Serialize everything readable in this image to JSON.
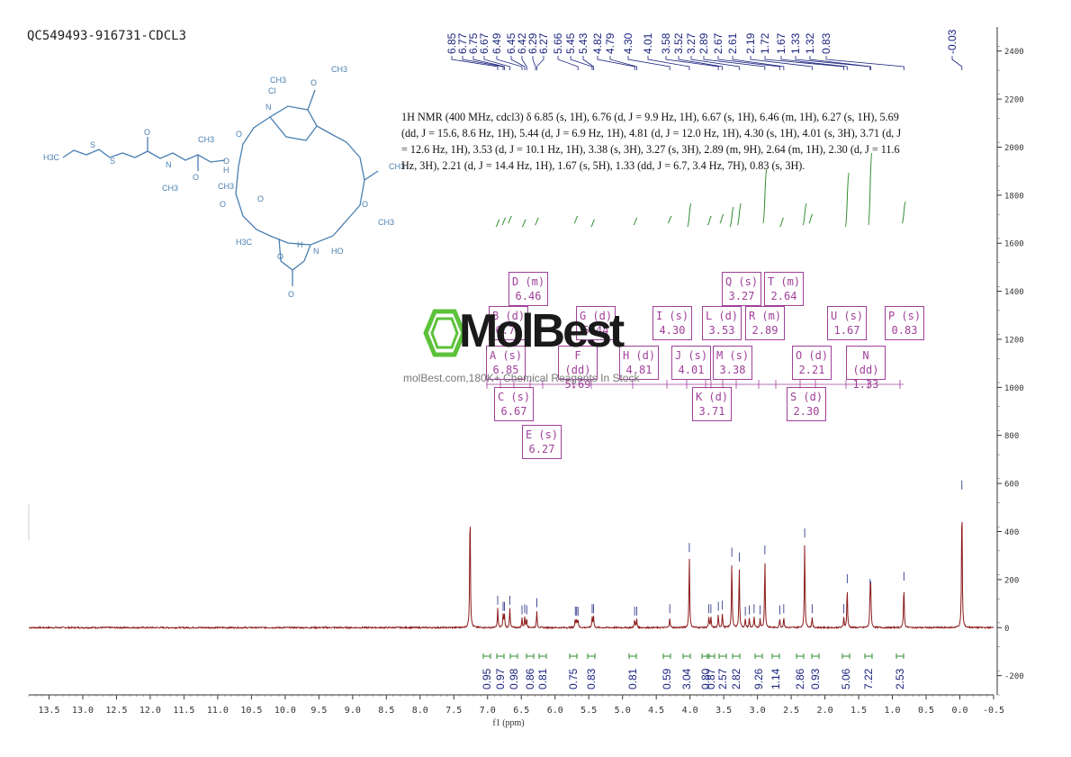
{
  "sample_title": "QC549493-916731-CDCL3",
  "nmr_description": "1H NMR (400 MHz, cdcl3) δ 6.85 (s, 1H), 6.76 (d, J = 9.9 Hz, 1H), 6.67 (s, 1H), 6.46 (m, 1H), 6.27 (s, 1H), 5.69 (dd, J = 15.6, 8.6 Hz, 1H), 5.44 (d, J = 6.9 Hz, 1H), 4.81 (d, J = 12.0 Hz, 1H), 4.30 (s, 1H), 4.01 (s, 3H), 3.71 (d, J = 12.6 Hz, 1H), 3.53 (d, J = 10.1 Hz, 1H), 3.38 (s, 3H), 3.27 (s, 3H), 2.89 (m, 9H), 2.64 (m, 1H), 2.30 (d, J = 11.6 Hz, 3H), 2.21 (d, J = 14.4 Hz, 1H), 1.67 (s, 5H), 1.33 (dd, J = 6.7, 3.4 Hz, 7H), 0.83 (s, 3H).",
  "watermark": {
    "brand": "MolBest",
    "subtitle": "molBest.com,180K+ Chemical Reagents In Stock"
  },
  "colors": {
    "spectrum": "#8b1a1a",
    "peak_labels": "#1a237e",
    "integral": "#2e8b2e",
    "multiplet_box": "#a0409a",
    "structure": "#4a7fb0"
  },
  "structure_atom_labels": [
    "H3C",
    "S",
    "S",
    "O",
    "N",
    "CH3",
    "CH3",
    "O",
    "O",
    "Cl",
    "O",
    "CH3",
    "N",
    "CH3",
    "O",
    "O",
    "CH3",
    "H",
    "O",
    "H3C",
    "O",
    "N",
    "H",
    "HO",
    "O",
    "O",
    "CH3",
    "CH3"
  ],
  "chart_data": {
    "type": "line",
    "title": "",
    "xlabel": "f1 (ppm)",
    "ylabel": "",
    "xlim": [
      13.8,
      -0.5
    ],
    "ylim": [
      -280,
      2500
    ],
    "x_ticks": [
      "13.5",
      "13.0",
      "12.5",
      "12.0",
      "11.5",
      "11.0",
      "10.5",
      "10.0",
      "9.5",
      "9.0",
      "8.5",
      "8.0",
      "7.5",
      "7.0",
      "6.5",
      "6.0",
      "5.5",
      "5.0",
      "4.5",
      "4.0",
      "3.5",
      "3.0",
      "2.5",
      "2.0",
      "1.5",
      "1.0",
      "0.5",
      "0.0",
      "-0.5"
    ],
    "x_tick_values": [
      13.5,
      13.0,
      12.5,
      12.0,
      11.5,
      11.0,
      10.5,
      10.0,
      9.5,
      9.0,
      8.5,
      8.0,
      7.5,
      7.0,
      6.5,
      6.0,
      5.5,
      5.0,
      4.5,
      4.0,
      3.5,
      3.0,
      2.5,
      2.0,
      1.5,
      1.0,
      0.5,
      0.0,
      -0.5
    ],
    "y_ticks": [
      "-200",
      "0",
      "200",
      "400",
      "600",
      "800",
      "1000",
      "1200",
      "1400",
      "1600",
      "1800",
      "2000",
      "2200",
      "2400"
    ],
    "y_tick_values": [
      -200,
      0,
      200,
      400,
      600,
      800,
      1000,
      1200,
      1400,
      1600,
      1800,
      2000,
      2200,
      2400
    ],
    "peak_labels": [
      "6.85",
      "6.77",
      "6.75",
      "6.67",
      "6.49",
      "6.45",
      "6.42",
      "6.29",
      "6.27",
      "5.66",
      "5.45",
      "5.43",
      "4.82",
      "4.79",
      "4.30",
      "4.01",
      "3.58",
      "3.52",
      "3.27",
      "2.89",
      "2.67",
      "2.61",
      "2.19",
      "1.72",
      "1.67",
      "1.33",
      "1.32",
      "0.83",
      "-0.03"
    ],
    "peak_label_values": [
      6.85,
      6.77,
      6.75,
      6.67,
      6.49,
      6.45,
      6.42,
      6.29,
      6.27,
      5.66,
      5.45,
      5.43,
      4.82,
      4.79,
      4.3,
      4.01,
      3.58,
      3.52,
      3.27,
      2.89,
      2.67,
      2.61,
      2.19,
      1.72,
      1.67,
      1.33,
      1.32,
      0.83,
      -0.03
    ],
    "peaks": [
      {
        "ppm": 7.26,
        "height": 530
      },
      {
        "ppm": 6.85,
        "height": 80
      },
      {
        "ppm": 6.77,
        "height": 55
      },
      {
        "ppm": 6.75,
        "height": 55
      },
      {
        "ppm": 6.67,
        "height": 80
      },
      {
        "ppm": 6.49,
        "height": 40
      },
      {
        "ppm": 6.45,
        "height": 45
      },
      {
        "ppm": 6.42,
        "height": 40
      },
      {
        "ppm": 6.27,
        "height": 70
      },
      {
        "ppm": 5.7,
        "height": 35
      },
      {
        "ppm": 5.68,
        "height": 35
      },
      {
        "ppm": 5.66,
        "height": 35
      },
      {
        "ppm": 5.45,
        "height": 45
      },
      {
        "ppm": 5.43,
        "height": 45
      },
      {
        "ppm": 4.82,
        "height": 35
      },
      {
        "ppm": 4.79,
        "height": 35
      },
      {
        "ppm": 4.3,
        "height": 45
      },
      {
        "ppm": 4.01,
        "height": 300
      },
      {
        "ppm": 3.72,
        "height": 45
      },
      {
        "ppm": 3.69,
        "height": 45
      },
      {
        "ppm": 3.58,
        "height": 55
      },
      {
        "ppm": 3.52,
        "height": 60
      },
      {
        "ppm": 3.38,
        "height": 280
      },
      {
        "ppm": 3.27,
        "height": 260
      },
      {
        "ppm": 3.18,
        "height": 35
      },
      {
        "ppm": 3.12,
        "height": 40
      },
      {
        "ppm": 3.05,
        "height": 45
      },
      {
        "ppm": 2.96,
        "height": 40
      },
      {
        "ppm": 2.89,
        "height": 290
      },
      {
        "ppm": 2.67,
        "height": 40
      },
      {
        "ppm": 2.61,
        "height": 45
      },
      {
        "ppm": 2.3,
        "height": 360
      },
      {
        "ppm": 2.19,
        "height": 45
      },
      {
        "ppm": 1.72,
        "height": 45
      },
      {
        "ppm": 1.67,
        "height": 170
      },
      {
        "ppm": 1.33,
        "height": 150
      },
      {
        "ppm": 1.32,
        "height": 140
      },
      {
        "ppm": 0.83,
        "height": 180
      },
      {
        "ppm": -0.03,
        "height": 560
      }
    ],
    "integrations": [
      {
        "label": "0.95",
        "ppm": 6.85
      },
      {
        "label": "0.97",
        "ppm": 6.76
      },
      {
        "label": "0.98",
        "ppm": 6.67
      },
      {
        "label": "0.86",
        "ppm": 6.46
      },
      {
        "label": "0.81",
        "ppm": 6.27
      },
      {
        "label": "0.75",
        "ppm": 5.69
      },
      {
        "label": "0.83",
        "ppm": 5.44
      },
      {
        "label": "0.81",
        "ppm": 4.81
      },
      {
        "label": "0.59",
        "ppm": 4.3
      },
      {
        "label": "3.04",
        "ppm": 4.01
      },
      {
        "label": "0.80",
        "ppm": 3.71
      },
      {
        "label": "0.87",
        "ppm": 3.53
      },
      {
        "label": "2.57",
        "ppm": 3.38
      },
      {
        "label": "2.82",
        "ppm": 3.27
      },
      {
        "label": "9.26",
        "ppm": 2.89
      },
      {
        "label": "1.14",
        "ppm": 2.64
      },
      {
        "label": "2.86",
        "ppm": 2.3
      },
      {
        "label": "0.93",
        "ppm": 2.21
      },
      {
        "label": "5.06",
        "ppm": 1.67
      },
      {
        "label": "7.22",
        "ppm": 1.33
      },
      {
        "label": "2.53",
        "ppm": 0.83
      }
    ],
    "multiplets": [
      {
        "letter": "A",
        "mult": "s",
        "ppm_label": "6.85"
      },
      {
        "letter": "B",
        "mult": "d",
        "ppm_label": "6.76"
      },
      {
        "letter": "C",
        "mult": "s",
        "ppm_label": "6.67"
      },
      {
        "letter": "D",
        "mult": "m",
        "ppm_label": "6.46"
      },
      {
        "letter": "E",
        "mult": "s",
        "ppm_label": "6.27"
      },
      {
        "letter": "F",
        "mult": "dd",
        "ppm_label": "5.69"
      },
      {
        "letter": "G",
        "mult": "d",
        "ppm_label": "5.44"
      },
      {
        "letter": "H",
        "mult": "d",
        "ppm_label": "4.81"
      },
      {
        "letter": "I",
        "mult": "s",
        "ppm_label": "4.30"
      },
      {
        "letter": "J",
        "mult": "s",
        "ppm_label": "4.01"
      },
      {
        "letter": "K",
        "mult": "d",
        "ppm_label": "3.71"
      },
      {
        "letter": "L",
        "mult": "d",
        "ppm_label": "3.53"
      },
      {
        "letter": "M",
        "mult": "s",
        "ppm_label": "3.38"
      },
      {
        "letter": "Q",
        "mult": "s",
        "ppm_label": "3.27"
      },
      {
        "letter": "R",
        "mult": "m",
        "ppm_label": "2.89"
      },
      {
        "letter": "T",
        "mult": "m",
        "ppm_label": "2.64"
      },
      {
        "letter": "S",
        "mult": "d",
        "ppm_label": "2.30"
      },
      {
        "letter": "O",
        "mult": "d",
        "ppm_label": "2.21"
      },
      {
        "letter": "U",
        "mult": "s",
        "ppm_label": "1.67"
      },
      {
        "letter": "N",
        "mult": "dd",
        "ppm_label": "1.33"
      },
      {
        "letter": "P",
        "mult": "s",
        "ppm_label": "0.83"
      }
    ],
    "grid": false,
    "legend": "none"
  }
}
